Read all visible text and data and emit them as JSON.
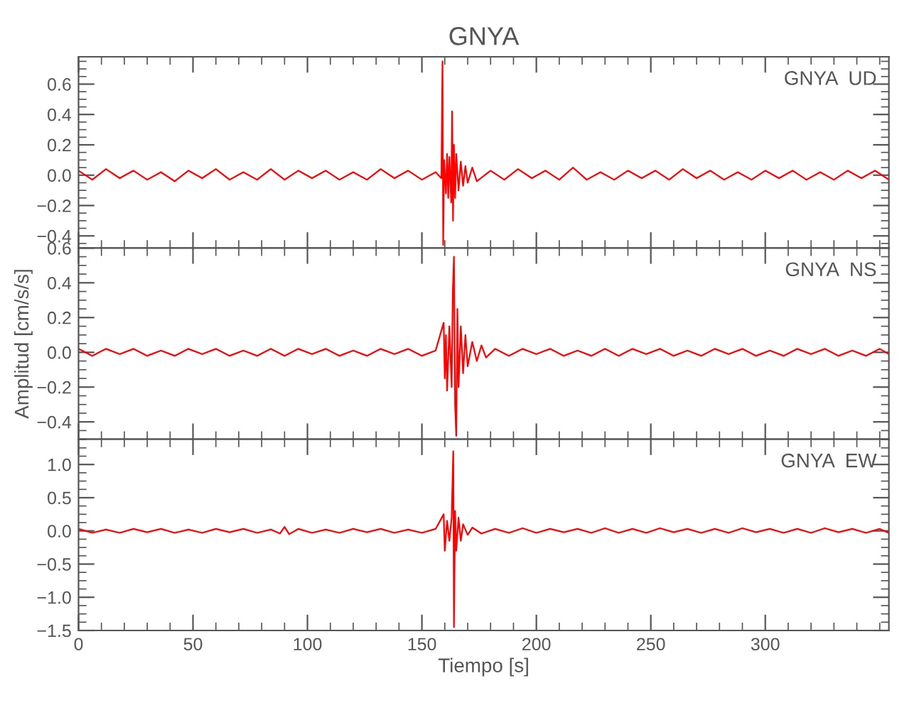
{
  "chart_data": [
    {
      "type": "line",
      "title": "GNYA",
      "annotations": [
        "GNYA  UD"
      ],
      "tick_labels": "y",
      "xlim": [
        0,
        354
      ],
      "xticks": [
        0,
        50,
        100,
        150,
        200,
        250,
        300
      ],
      "ylim": [
        -0.48,
        0.78
      ],
      "yticks": [
        {
          "value": -0.4,
          "label": "−0.4"
        },
        {
          "value": -0.2,
          "label": "−0.2"
        },
        {
          "value": 0.0,
          "label": "0.0"
        },
        {
          "value": 0.2,
          "label": "0.2"
        },
        {
          "value": 0.4,
          "label": "0.4"
        },
        {
          "value": 0.6,
          "label": "0.6"
        }
      ],
      "grid": false,
      "legend": false,
      "series": [
        {
          "color": "#ff0000",
          "x": [
            0,
            6,
            12,
            18,
            24,
            30,
            36,
            42,
            48,
            54,
            60,
            66,
            72,
            78,
            84,
            90,
            96,
            102,
            108,
            114,
            120,
            126,
            132,
            138,
            144,
            150,
            156,
            158.5,
            159,
            159.3,
            159.7,
            160.5,
            161,
            161.5,
            162,
            162.8,
            163.2,
            163.6,
            164,
            164.5,
            165,
            166,
            167,
            168,
            169,
            170,
            172,
            174,
            180,
            186,
            192,
            198,
            204,
            210,
            216,
            222,
            228,
            234,
            240,
            246,
            252,
            258,
            264,
            270,
            276,
            282,
            288,
            294,
            300,
            306,
            312,
            318,
            324,
            330,
            336,
            342,
            348,
            354
          ],
          "values": [
            0.03,
            -0.03,
            0.04,
            -0.02,
            0.03,
            -0.03,
            0.02,
            -0.04,
            0.03,
            -0.02,
            0.04,
            -0.03,
            0.02,
            -0.03,
            0.04,
            -0.03,
            0.03,
            -0.02,
            0.03,
            -0.03,
            0.02,
            -0.03,
            0.04,
            -0.02,
            0.03,
            -0.03,
            0.02,
            -0.02,
            0.75,
            -0.46,
            0.1,
            -0.12,
            0.14,
            -0.15,
            0.12,
            -0.18,
            0.42,
            -0.3,
            0.2,
            -0.15,
            0.14,
            -0.1,
            0.09,
            -0.07,
            0.06,
            -0.05,
            0.05,
            -0.04,
            0.03,
            -0.03,
            0.04,
            -0.02,
            0.03,
            -0.03,
            0.05,
            -0.03,
            0.02,
            -0.03,
            0.03,
            -0.02,
            0.03,
            -0.03,
            0.04,
            -0.02,
            0.03,
            -0.03,
            0.02,
            -0.03,
            0.03,
            -0.02,
            0.03,
            -0.03,
            0.02,
            -0.03,
            0.03,
            -0.02,
            0.03,
            -0.03
          ]
        }
      ]
    },
    {
      "type": "line",
      "ylabel": "Amplitud [cm/s/s]",
      "annotations": [
        "GNYA  NS"
      ],
      "tick_labels": "y",
      "xlim": [
        0,
        354
      ],
      "xticks": [
        0,
        50,
        100,
        150,
        200,
        250,
        300
      ],
      "ylim": [
        -0.5,
        0.6
      ],
      "yticks": [
        {
          "value": -0.4,
          "label": "−0.4"
        },
        {
          "value": -0.2,
          "label": "−0.2"
        },
        {
          "value": 0.0,
          "label": "0.0"
        },
        {
          "value": 0.2,
          "label": "0.2"
        },
        {
          "value": 0.4,
          "label": "0.4"
        },
        {
          "value": 0.6,
          "label": "0.6"
        }
      ],
      "grid": false,
      "legend": false,
      "series": [
        {
          "color": "#ff0000",
          "x": [
            0,
            6,
            12,
            18,
            24,
            30,
            36,
            42,
            48,
            54,
            60,
            66,
            72,
            78,
            84,
            90,
            96,
            102,
            108,
            114,
            120,
            126,
            132,
            138,
            144,
            150,
            156,
            159.5,
            160,
            160.5,
            161,
            162,
            163,
            163.5,
            164,
            164.5,
            165,
            165.5,
            166,
            167,
            168,
            169,
            170,
            172,
            174,
            176,
            178,
            182,
            188,
            194,
            200,
            206,
            212,
            218,
            224,
            230,
            236,
            242,
            248,
            254,
            260,
            266,
            272,
            278,
            284,
            290,
            296,
            302,
            308,
            314,
            320,
            326,
            332,
            338,
            344,
            350,
            354
          ],
          "values": [
            0.02,
            -0.02,
            0.02,
            -0.01,
            0.02,
            -0.02,
            0.01,
            -0.02,
            0.02,
            -0.01,
            0.02,
            -0.02,
            0.01,
            -0.02,
            0.02,
            -0.02,
            0.02,
            -0.01,
            0.02,
            -0.02,
            0.01,
            -0.02,
            0.02,
            -0.01,
            0.02,
            -0.02,
            0.01,
            0.17,
            -0.15,
            0.1,
            -0.22,
            0.15,
            -0.2,
            0.35,
            0.55,
            -0.3,
            -0.48,
            0.25,
            -0.2,
            0.15,
            -0.12,
            0.1,
            -0.08,
            0.06,
            -0.05,
            0.04,
            -0.03,
            0.02,
            -0.02,
            0.02,
            -0.01,
            0.02,
            -0.02,
            0.01,
            -0.02,
            0.02,
            -0.02,
            0.02,
            -0.01,
            0.02,
            -0.02,
            0.01,
            -0.02,
            0.02,
            -0.01,
            0.02,
            -0.02,
            0.01,
            -0.02,
            0.02,
            -0.01,
            0.02,
            -0.02,
            0.01,
            -0.02,
            0.02,
            -0.01
          ]
        }
      ]
    },
    {
      "type": "line",
      "xlabel": "Tiempo [s]",
      "annotations": [
        "GNYA  EW"
      ],
      "xlim": [
        0,
        354
      ],
      "xticks": [
        0,
        50,
        100,
        150,
        200,
        250,
        300
      ],
      "ylim": [
        -1.5,
        1.38
      ],
      "yticks": [
        {
          "value": -1.5,
          "label": "−1.5"
        },
        {
          "value": -1.0,
          "label": "−1.0"
        },
        {
          "value": -0.5,
          "label": "−0.5"
        },
        {
          "value": 0.0,
          "label": "0.0"
        },
        {
          "value": 0.5,
          "label": "0.5"
        },
        {
          "value": 1.0,
          "label": "1.0"
        }
      ],
      "grid": false,
      "legend": false,
      "series": [
        {
          "color": "#ff0000",
          "x": [
            0,
            6,
            12,
            18,
            24,
            30,
            36,
            42,
            48,
            54,
            60,
            66,
            72,
            78,
            84,
            88,
            90,
            92,
            96,
            102,
            108,
            114,
            120,
            126,
            132,
            138,
            144,
            150,
            156,
            159.5,
            160,
            161,
            162,
            163,
            163.7,
            164,
            164.5,
            165,
            166,
            167,
            168,
            170,
            172,
            176,
            182,
            188,
            194,
            200,
            206,
            212,
            218,
            224,
            230,
            236,
            242,
            248,
            254,
            260,
            266,
            272,
            278,
            284,
            290,
            296,
            302,
            308,
            314,
            320,
            326,
            332,
            338,
            344,
            350,
            354
          ],
          "values": [
            0.03,
            -0.03,
            0.02,
            -0.03,
            0.03,
            -0.02,
            0.03,
            -0.03,
            0.02,
            -0.03,
            0.03,
            -0.02,
            0.03,
            -0.03,
            0.02,
            -0.04,
            0.06,
            -0.05,
            0.03,
            -0.03,
            0.02,
            -0.03,
            0.03,
            -0.02,
            0.03,
            -0.03,
            0.02,
            -0.03,
            0.03,
            0.25,
            -0.3,
            0.15,
            -0.15,
            0.2,
            1.2,
            -1.45,
            0.3,
            -0.3,
            0.2,
            -0.15,
            0.1,
            -0.06,
            0.05,
            -0.04,
            0.03,
            -0.03,
            0.04,
            -0.03,
            0.03,
            -0.02,
            0.03,
            -0.03,
            0.04,
            -0.03,
            0.03,
            -0.03,
            0.04,
            -0.02,
            0.03,
            -0.03,
            0.03,
            -0.03,
            0.04,
            -0.02,
            0.03,
            -0.03,
            0.03,
            -0.03,
            0.04,
            -0.02,
            0.03,
            -0.03,
            0.03,
            -0.03
          ]
        }
      ]
    }
  ]
}
